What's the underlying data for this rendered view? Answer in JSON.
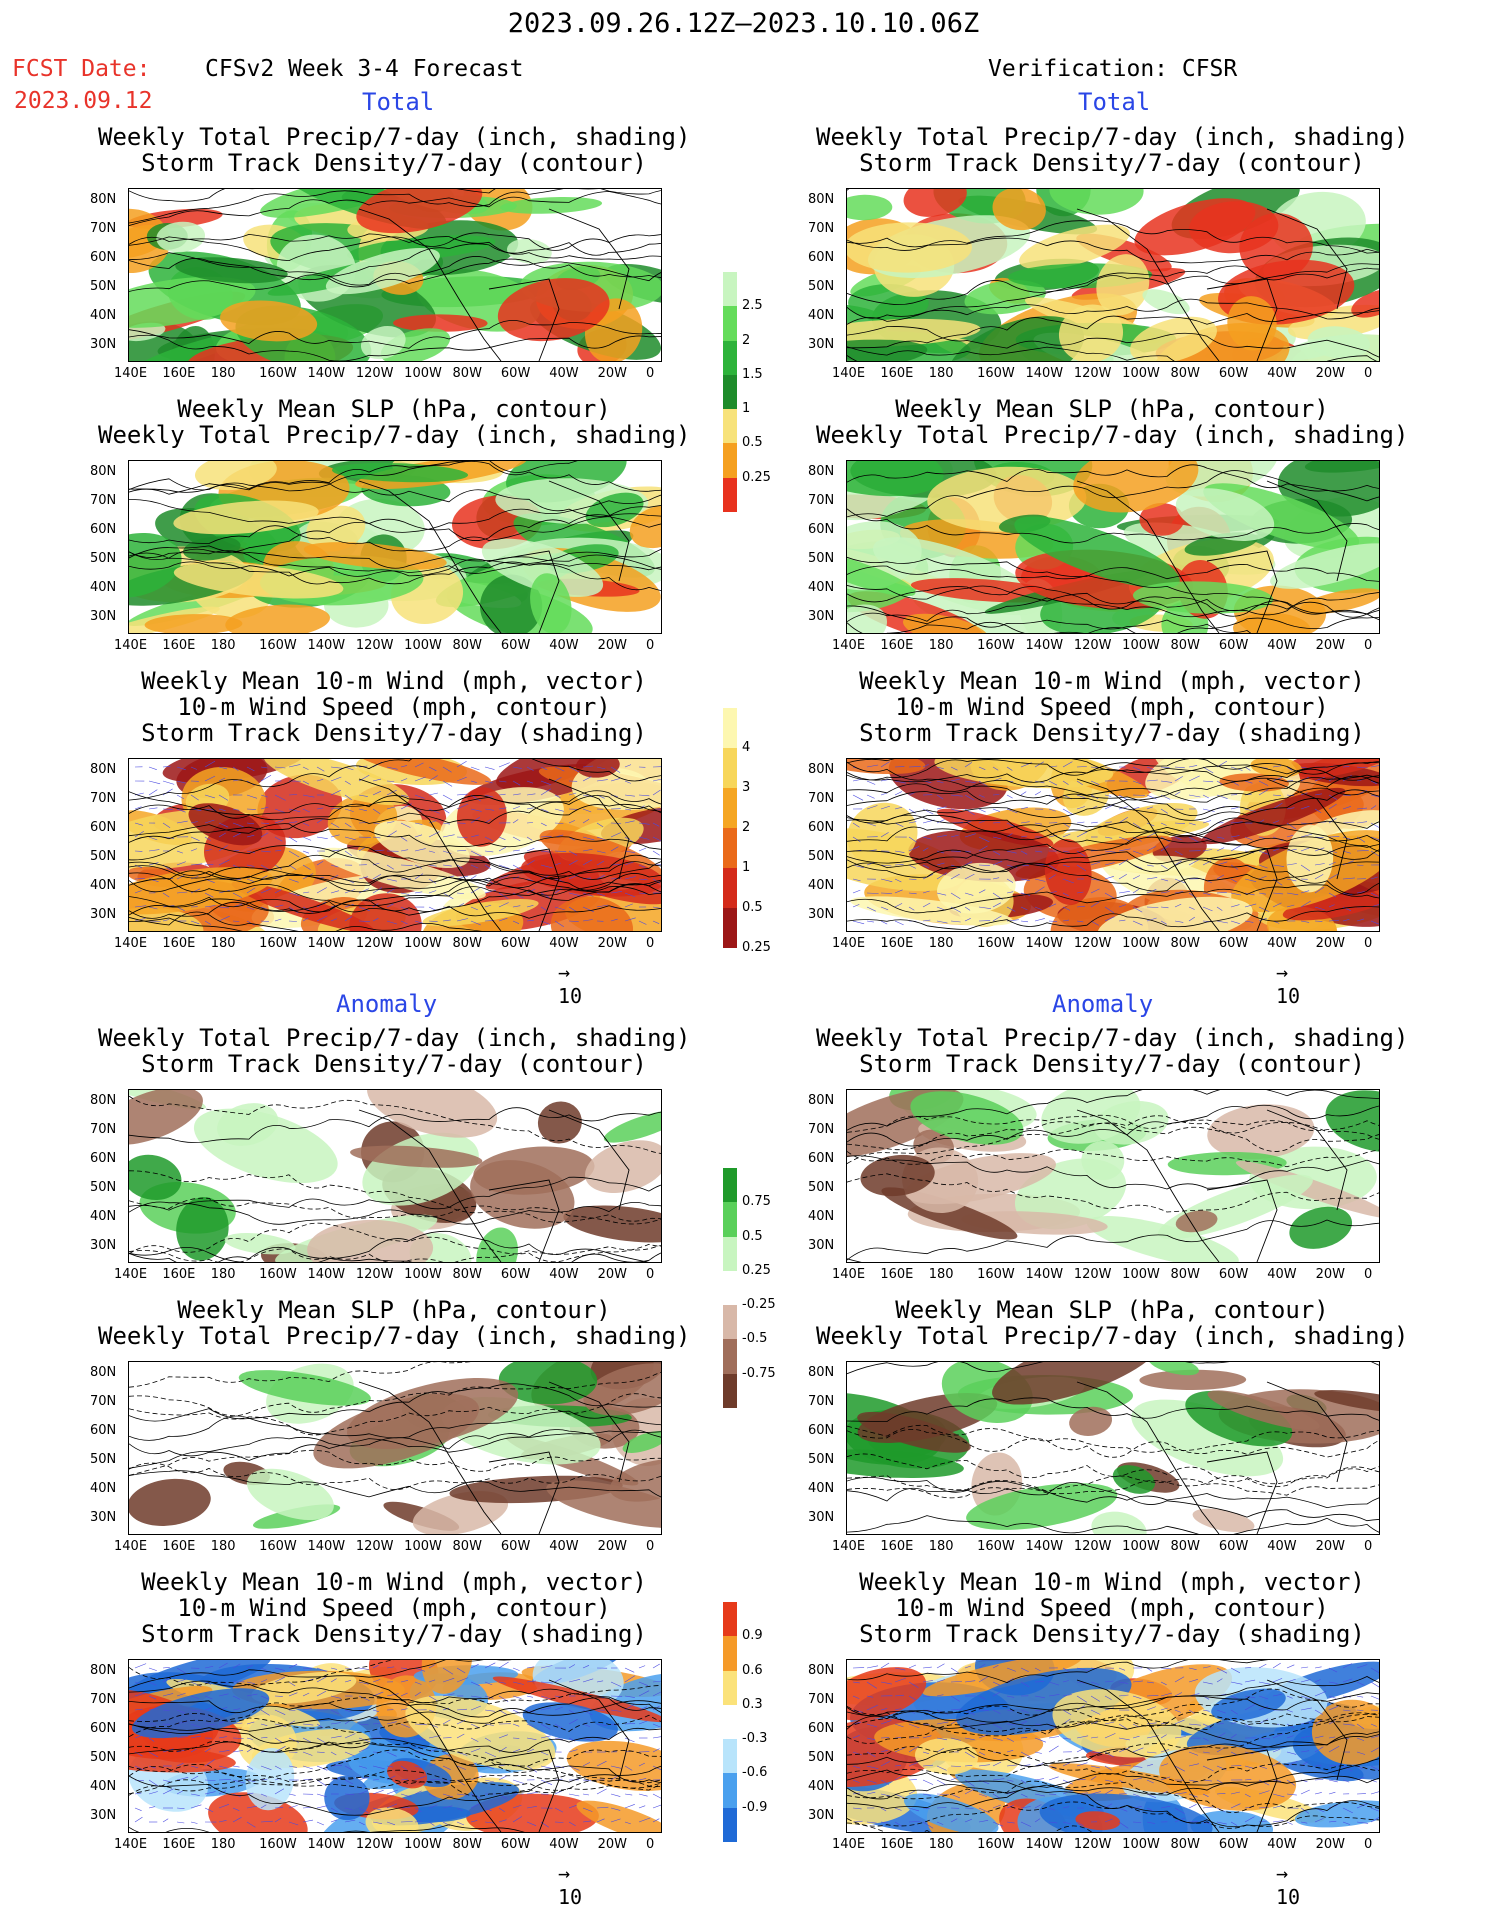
{
  "header": {
    "date_range": "2023.09.26.12Z—2023.10.10.06Z",
    "fcst_label": "FCST Date:",
    "fcst_date": "2023.09.12",
    "left_title": "CFSv2 Week 3-4 Forecast",
    "right_title": "Verification: CFSR"
  },
  "sections": {
    "total": "Total",
    "anomaly": "Anomaly"
  },
  "panel_titles": {
    "precip_storm": [
      "Weekly Total Precip/7-day (inch, shading)",
      "Storm Track Density/7-day (contour)"
    ],
    "slp_precip": [
      "Weekly Mean SLP (hPa, contour)",
      "Weekly Total Precip/7-day (inch, shading)"
    ],
    "wind_storm": [
      "Weekly Mean 10-m Wind (mph, vector)",
      "10-m Wind Speed (mph, contour)",
      "Storm Track Density/7-day (shading)"
    ]
  },
  "axes": {
    "lat_labels": [
      "80N",
      "70N",
      "60N",
      "50N",
      "40N",
      "30N"
    ],
    "lon_labels": [
      "140E",
      "160E",
      "180",
      "160W",
      "140W",
      "120W",
      "100W",
      "80W",
      "60W",
      "40W",
      "20W",
      "0"
    ]
  },
  "vector_reference": "10",
  "colorbars": {
    "precip_total": [
      "0.25",
      "0.5",
      "1",
      "1.5",
      "2",
      "2.5"
    ],
    "storm_total": [
      "0.25",
      "0.5",
      "1",
      "2",
      "3",
      "4"
    ],
    "precip_anom": [
      "-0.75",
      "-0.5",
      "-0.25",
      "0.25",
      "0.5",
      "0.75"
    ],
    "storm_anom": [
      "-0.9",
      "-0.6",
      "-0.3",
      "0.3",
      "0.6",
      "0.9"
    ]
  },
  "colors": {
    "precip": [
      "#c8f5c0",
      "#64dc5a",
      "#2db33a",
      "#1e8c2a",
      "#f7e27a",
      "#f5a020",
      "#e8321e"
    ],
    "storm": [
      "#fdf7b0",
      "#f7d65a",
      "#f5a623",
      "#ea6a1a",
      "#d42a1a",
      "#9c1616"
    ],
    "anom_precip_dry": [
      "#6e3b2a",
      "#a06e5a",
      "#d8b8a8"
    ],
    "anom_precip_wet": [
      "#c8f5c0",
      "#5ad05a",
      "#1f9a2a"
    ],
    "anom_storm_neg": [
      "#1f6ad6",
      "#4aa0ee",
      "#b8e4fb"
    ],
    "anom_storm_pos": [
      "#fbe27a",
      "#f59a28",
      "#e63a1a"
    ]
  }
}
